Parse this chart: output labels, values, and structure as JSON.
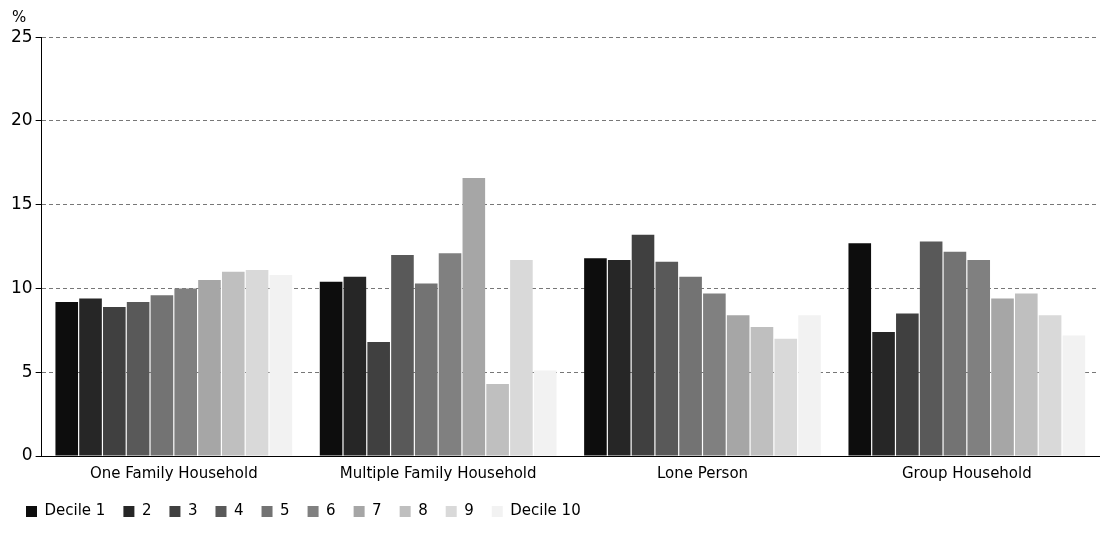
{
  "chart_data": {
    "type": "bar",
    "ylabel": "%",
    "categories": [
      "One Family Household",
      "Multiple Family Household",
      "Lone Person",
      "Group Household"
    ],
    "series": [
      {
        "name": "Decile 1",
        "color": "#0d0d0d",
        "values": [
          9.2,
          10.4,
          11.8,
          12.7
        ]
      },
      {
        "name": "2",
        "color": "#262626",
        "values": [
          9.4,
          10.7,
          11.7,
          7.4
        ]
      },
      {
        "name": "3",
        "color": "#404040",
        "values": [
          8.9,
          6.8,
          13.2,
          8.5
        ]
      },
      {
        "name": "4",
        "color": "#595959",
        "values": [
          9.2,
          12.0,
          11.6,
          12.8
        ]
      },
      {
        "name": "5",
        "color": "#737373",
        "values": [
          9.6,
          10.3,
          10.7,
          12.2
        ]
      },
      {
        "name": "6",
        "color": "#808080",
        "values": [
          10.0,
          12.1,
          9.7,
          11.7
        ]
      },
      {
        "name": "7",
        "color": "#a6a6a6",
        "values": [
          10.5,
          16.6,
          8.4,
          9.4
        ]
      },
      {
        "name": "8",
        "color": "#bfbfbf",
        "values": [
          11.0,
          4.3,
          7.7,
          9.7
        ]
      },
      {
        "name": "9",
        "color": "#d9d9d9",
        "values": [
          11.1,
          11.7,
          7.0,
          8.4
        ]
      },
      {
        "name": "Decile 10",
        "color": "#f2f2f2",
        "values": [
          10.8,
          5.1,
          8.4,
          7.2
        ]
      }
    ],
    "ylim": [
      0,
      25
    ],
    "yticks": [
      0,
      5,
      10,
      15,
      20,
      25
    ],
    "grid": "y",
    "legend": "bottom"
  }
}
